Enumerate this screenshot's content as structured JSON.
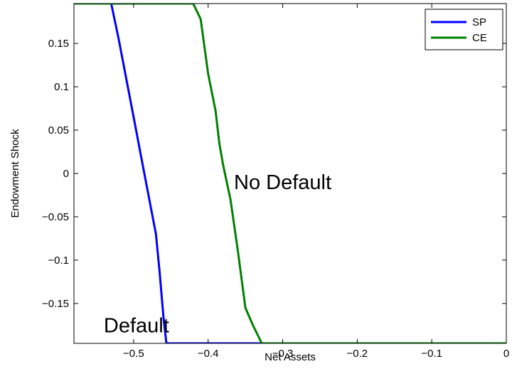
{
  "chart_data": {
    "type": "line",
    "title": "",
    "xlabel": "Net Assets",
    "ylabel": "Endowment Shock",
    "xlim": [
      -0.58,
      0
    ],
    "ylim": [
      -0.196,
      0.196
    ],
    "xticks": [
      -0.5,
      -0.4,
      -0.3,
      -0.2,
      -0.1,
      0
    ],
    "xtick_labels": [
      "−0.5",
      "−0.4",
      "−0.3",
      "−0.2",
      "−0.1",
      "0"
    ],
    "yticks": [
      0.15,
      0.1,
      0.05,
      0,
      -0.05,
      -0.1,
      -0.15
    ],
    "ytick_labels": [
      "0.15",
      "0.1",
      "0.05",
      "0",
      "−0.05",
      "−0.1",
      "−0.15"
    ],
    "grid": false,
    "legend_position": "top-right",
    "annotations": [
      {
        "text": "No Default",
        "x": -0.3,
        "y": -0.01
      },
      {
        "text": "Default",
        "x": -0.54,
        "y": -0.175
      }
    ],
    "series": [
      {
        "name": "SP",
        "color": "#0000ff",
        "x": [
          -0.58,
          -0.53,
          -0.52,
          -0.51,
          -0.5,
          -0.49,
          -0.48,
          -0.47,
          -0.465,
          -0.46,
          -0.456,
          0
        ],
        "y": [
          0.196,
          0.196,
          0.155,
          0.11,
          0.065,
          0.02,
          -0.025,
          -0.07,
          -0.115,
          -0.165,
          -0.196,
          -0.196
        ]
      },
      {
        "name": "CE",
        "color": "#008000",
        "x": [
          -0.58,
          -0.42,
          -0.41,
          -0.4,
          -0.39,
          -0.385,
          -0.38,
          -0.37,
          -0.36,
          -0.35,
          -0.34,
          -0.328,
          0
        ],
        "y": [
          0.196,
          0.196,
          0.178,
          0.115,
          0.072,
          0.035,
          0.01,
          -0.03,
          -0.09,
          -0.155,
          -0.175,
          -0.196,
          -0.196
        ]
      }
    ]
  }
}
